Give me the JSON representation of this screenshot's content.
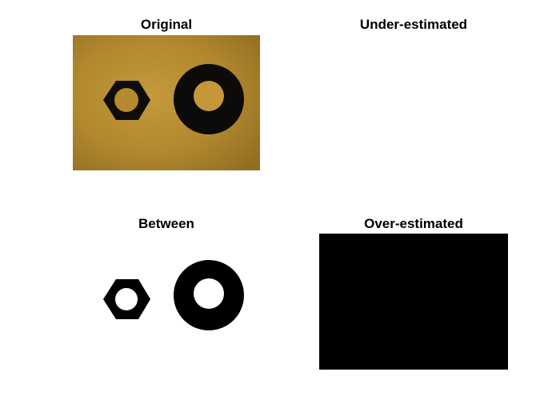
{
  "panels": {
    "original": {
      "title": "Original"
    },
    "under": {
      "title": "Under-estimated"
    },
    "between": {
      "title": "Between"
    },
    "over": {
      "title": "Over-estimated"
    }
  },
  "colors": {
    "background_paper": "#b0852a",
    "background_paper_light": "#c79a3b",
    "object_dark": "#0c0c0a",
    "binary_white": "#ffffff",
    "binary_black": "#000000"
  },
  "objects": [
    "hex-nut",
    "round-washer"
  ]
}
